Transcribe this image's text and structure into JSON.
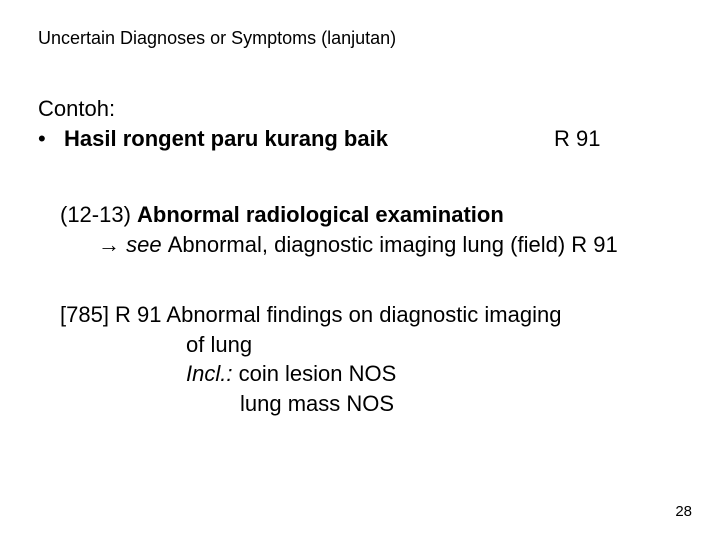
{
  "title": "Uncertain Diagnoses or Symptoms (lanjutan)",
  "contoh": "Contoh:",
  "bullet": {
    "dot": "•",
    "text": "Hasil rongent paru kurang baik",
    "code": "R 91"
  },
  "block1": {
    "line1_ref": "(12-13) ",
    "line1_bold": "Abnormal radiological examination",
    "arrow": "→ ",
    "line2_italic": "see ",
    "line2_rest": "Abnormal, diagnostic imaging lung (field) R 91"
  },
  "block2": {
    "line1_a": "[785]  R 91  Abnormal findings on diagnostic imaging",
    "line1_b": "of lung",
    "incl_label": "Incl.: ",
    "incl_1": "coin lesion NOS",
    "incl_2": "lung mass NOS"
  },
  "page_number": "28"
}
